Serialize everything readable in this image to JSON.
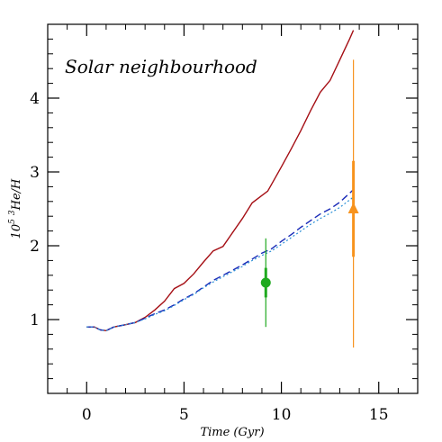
{
  "chart_data": {
    "type": "line",
    "title": "Solar neighbourhood",
    "xlabel": "Time (Gyr)",
    "ylabel_prefix": "10",
    "ylabel_exp": "5",
    "ylabel_iso": "3",
    "ylabel_rest": "He/H",
    "xlim": [
      -2,
      17
    ],
    "ylim": [
      0,
      5
    ],
    "xticks_major": [
      0,
      5,
      10,
      15
    ],
    "yticks_major": [
      1,
      2,
      3,
      4
    ],
    "grid": false,
    "series": [
      {
        "style": "solid",
        "color": "#a50f15",
        "points": [
          [
            0,
            0.9
          ],
          [
            0.4,
            0.9
          ],
          [
            0.7,
            0.86
          ],
          [
            1.0,
            0.85
          ],
          [
            1.4,
            0.9
          ],
          [
            2.0,
            0.93
          ],
          [
            2.5,
            0.96
          ],
          [
            3.0,
            1.03
          ],
          [
            3.5,
            1.13
          ],
          [
            4.0,
            1.25
          ],
          [
            4.5,
            1.42
          ],
          [
            5.0,
            1.49
          ],
          [
            5.5,
            1.62
          ],
          [
            6.0,
            1.78
          ],
          [
            6.5,
            1.93
          ],
          [
            7.0,
            1.99
          ],
          [
            7.5,
            2.18
          ],
          [
            8.0,
            2.37
          ],
          [
            8.5,
            2.58
          ],
          [
            9.0,
            2.68
          ],
          [
            9.3,
            2.74
          ],
          [
            9.6,
            2.88
          ],
          [
            10.0,
            3.07
          ],
          [
            10.5,
            3.31
          ],
          [
            11.0,
            3.56
          ],
          [
            11.5,
            3.83
          ],
          [
            12.0,
            4.08
          ],
          [
            12.5,
            4.24
          ],
          [
            13.0,
            4.52
          ],
          [
            13.5,
            4.8
          ],
          [
            13.7,
            4.92
          ]
        ]
      },
      {
        "style": "dashed",
        "color": "#1a2bb8",
        "points": [
          [
            0,
            0.9
          ],
          [
            0.4,
            0.9
          ],
          [
            0.7,
            0.86
          ],
          [
            1.0,
            0.85
          ],
          [
            1.4,
            0.9
          ],
          [
            2.0,
            0.93
          ],
          [
            2.5,
            0.96
          ],
          [
            3.0,
            1.02
          ],
          [
            3.5,
            1.08
          ],
          [
            4.0,
            1.13
          ],
          [
            4.5,
            1.2
          ],
          [
            5.0,
            1.28
          ],
          [
            5.5,
            1.35
          ],
          [
            6.0,
            1.44
          ],
          [
            6.5,
            1.53
          ],
          [
            7.0,
            1.6
          ],
          [
            7.5,
            1.67
          ],
          [
            8.0,
            1.74
          ],
          [
            8.5,
            1.82
          ],
          [
            9.0,
            1.9
          ],
          [
            9.5,
            1.96
          ],
          [
            10.0,
            2.06
          ],
          [
            10.5,
            2.15
          ],
          [
            11.0,
            2.25
          ],
          [
            11.5,
            2.34
          ],
          [
            12.0,
            2.43
          ],
          [
            12.5,
            2.5
          ],
          [
            13.0,
            2.59
          ],
          [
            13.7,
            2.76
          ]
        ]
      },
      {
        "style": "dotted",
        "color": "#2a8fd6",
        "points": [
          [
            0,
            0.9
          ],
          [
            0.4,
            0.9
          ],
          [
            0.7,
            0.86
          ],
          [
            1.0,
            0.85
          ],
          [
            1.4,
            0.9
          ],
          [
            2.0,
            0.93
          ],
          [
            2.5,
            0.96
          ],
          [
            3.0,
            1.01
          ],
          [
            3.5,
            1.07
          ],
          [
            4.0,
            1.12
          ],
          [
            4.5,
            1.19
          ],
          [
            5.0,
            1.27
          ],
          [
            5.5,
            1.34
          ],
          [
            6.0,
            1.43
          ],
          [
            6.5,
            1.51
          ],
          [
            7.0,
            1.58
          ],
          [
            7.5,
            1.65
          ],
          [
            8.0,
            1.72
          ],
          [
            8.5,
            1.8
          ],
          [
            9.0,
            1.87
          ],
          [
            9.5,
            1.93
          ],
          [
            10.0,
            2.02
          ],
          [
            10.5,
            2.11
          ],
          [
            11.0,
            2.2
          ],
          [
            11.5,
            2.29
          ],
          [
            12.0,
            2.37
          ],
          [
            12.5,
            2.44
          ],
          [
            13.0,
            2.52
          ],
          [
            13.7,
            2.66
          ]
        ]
      }
    ],
    "observations": [
      {
        "x": 9.2,
        "y": 1.5,
        "err_inner": [
          1.3,
          1.7
        ],
        "err_outer": [
          0.9,
          2.1
        ],
        "marker": "circle",
        "color": "#1faa1f"
      },
      {
        "x": 13.7,
        "y": 2.5,
        "err_inner": [
          1.85,
          3.15
        ],
        "err_outer": [
          0.62,
          4.52
        ],
        "marker": "triangle",
        "color": "#f7931e"
      }
    ]
  }
}
